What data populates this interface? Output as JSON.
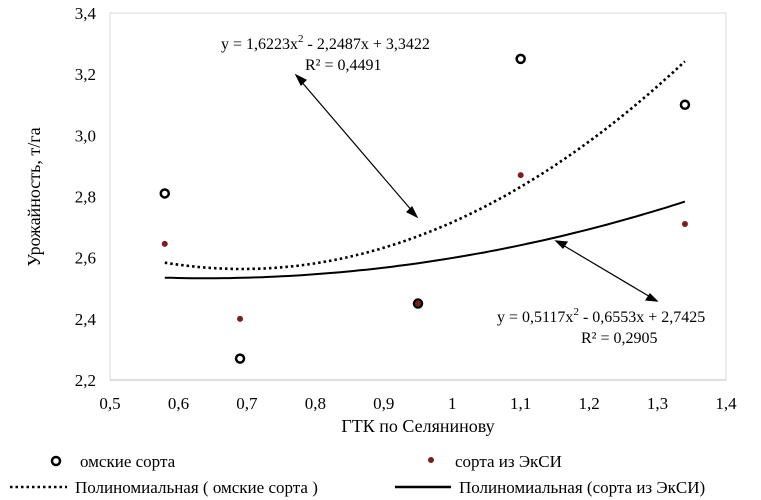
{
  "chart_data": {
    "type": "scatter",
    "title": "",
    "xlabel": "ГТК по Селянинову",
    "ylabel": "Урожайность, т/га",
    "xlim": [
      0.5,
      1.4
    ],
    "ylim": [
      2.2,
      3.4
    ],
    "xticks": [
      "0,5",
      "0,6",
      "0,7",
      "0,8",
      "0,9",
      "1",
      "1,1",
      "1,2",
      "1,3",
      "1,4"
    ],
    "yticks": [
      "2,2",
      "2,4",
      "2,6",
      "2,8",
      "3,0",
      "3,2",
      "3,4"
    ],
    "grid": "none",
    "legend_position": "bottom",
    "series": [
      {
        "name": "омские сорта",
        "marker": "open-circle",
        "color": "#000000",
        "points": [
          {
            "x": 0.58,
            "y": 2.81
          },
          {
            "x": 0.69,
            "y": 2.27
          },
          {
            "x": 0.95,
            "y": 2.45
          },
          {
            "x": 1.1,
            "y": 3.25
          },
          {
            "x": 1.34,
            "y": 3.1
          }
        ]
      },
      {
        "name": "сорта из ЭкСИ",
        "marker": "filled-dot",
        "color": "#7a1f1f",
        "points": [
          {
            "x": 0.58,
            "y": 2.645
          },
          {
            "x": 0.69,
            "y": 2.4
          },
          {
            "x": 0.95,
            "y": 2.45
          },
          {
            "x": 1.1,
            "y": 2.87
          },
          {
            "x": 1.34,
            "y": 2.71
          }
        ]
      }
    ],
    "trendlines": [
      {
        "name": "Полиномиальная ( омские сорта )",
        "style": "dotted",
        "coefficients": [
          1.6223,
          -2.2487,
          3.3422
        ],
        "x_range": [
          0.58,
          1.34
        ],
        "equation_prefix": "y = 1,6223x",
        "equation_suffix": " - 2,2487x + 3,3422",
        "r2": "R² = 0,4491"
      },
      {
        "name": "Полиномиальная (сорта из ЭкСИ)",
        "style": "solid",
        "coefficients": [
          0.5117,
          -0.6553,
          2.7425
        ],
        "x_range": [
          0.58,
          1.34
        ],
        "equation_prefix": "y = 0,5117x",
        "equation_suffix": " - 0,6553x + 2,7425",
        "r2": "R² = 0,2905"
      }
    ],
    "annotations": [
      "equation arrow to dotted trendline",
      "equation arrow to solid trendline"
    ]
  }
}
